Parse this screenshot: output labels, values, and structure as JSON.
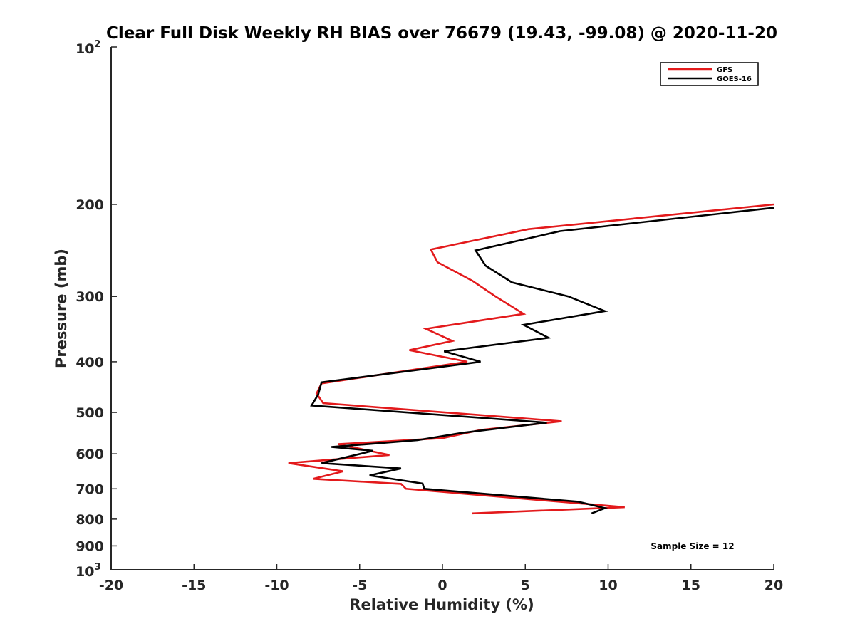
{
  "chart_data": {
    "type": "line",
    "title": "Clear Full Disk Weekly RH BIAS over 76679 (19.43, -99.08) @ 2020-11-20",
    "xlabel": "Relative Humidity (%)",
    "ylabel": "Pressure (mb)",
    "xlim": [
      -20,
      20
    ],
    "ylim": [
      100,
      1000
    ],
    "y_scale": "log",
    "y_reversed": true,
    "grid": false,
    "legend_position": "top-right",
    "x_ticks": [
      -20,
      -15,
      -10,
      -5,
      0,
      5,
      10,
      15,
      20
    ],
    "x_tick_labels": [
      "-20",
      "-15",
      "-10",
      "-5",
      "0",
      "5",
      "10",
      "15",
      "20"
    ],
    "y_ticks": [
      {
        "value": 100,
        "base": "10",
        "exp": "2"
      },
      {
        "value": 200,
        "label": "200"
      },
      {
        "value": 300,
        "label": "300"
      },
      {
        "value": 400,
        "label": "400"
      },
      {
        "value": 500,
        "label": "500"
      },
      {
        "value": 600,
        "label": "600"
      },
      {
        "value": 700,
        "label": "700"
      },
      {
        "value": 800,
        "label": "800"
      },
      {
        "value": 900,
        "label": "900"
      },
      {
        "value": 1000,
        "base": "10",
        "exp": "3"
      }
    ],
    "annotation": "Sample Size = 12",
    "series": [
      {
        "name": "GFS",
        "color": "#e31a1c",
        "points": [
          [
            20.0,
            200
          ],
          [
            5.2,
            223
          ],
          [
            -0.7,
            244
          ],
          [
            -0.3,
            258
          ],
          [
            1.8,
            280
          ],
          [
            3.2,
            300
          ],
          [
            4.9,
            324
          ],
          [
            -1.0,
            346
          ],
          [
            0.6,
            365
          ],
          [
            -2.0,
            380
          ],
          [
            1.5,
            400
          ],
          [
            -7.3,
            440
          ],
          [
            -7.6,
            460
          ],
          [
            -7.2,
            480
          ],
          [
            7.2,
            520
          ],
          [
            2.3,
            540
          ],
          [
            0.0,
            560
          ],
          [
            -6.3,
            575
          ],
          [
            -3.2,
            603
          ],
          [
            -9.3,
            625
          ],
          [
            -6.0,
            648
          ],
          [
            -7.8,
            670
          ],
          [
            -2.5,
            685
          ],
          [
            -2.2,
            700
          ],
          [
            11.0,
            759
          ],
          [
            1.8,
            780
          ]
        ]
      },
      {
        "name": "GOES-16",
        "color": "#000000",
        "points": [
          [
            20.0,
            203
          ],
          [
            7.1,
            225
          ],
          [
            2.0,
            245
          ],
          [
            2.6,
            262
          ],
          [
            4.2,
            282
          ],
          [
            7.6,
            300
          ],
          [
            9.8,
            320
          ],
          [
            4.9,
            340
          ],
          [
            6.4,
            360
          ],
          [
            0.1,
            382
          ],
          [
            2.3,
            400
          ],
          [
            -7.3,
            438
          ],
          [
            -7.5,
            462
          ],
          [
            -7.9,
            485
          ],
          [
            6.3,
            523
          ],
          [
            1.2,
            547
          ],
          [
            -1.5,
            565
          ],
          [
            -6.7,
            582
          ],
          [
            -4.2,
            592
          ],
          [
            -7.3,
            625
          ],
          [
            -2.5,
            640
          ],
          [
            -4.4,
            660
          ],
          [
            -1.2,
            684
          ],
          [
            -1.1,
            700
          ],
          [
            8.2,
            741
          ],
          [
            9.8,
            762
          ],
          [
            9.0,
            780
          ]
        ]
      }
    ]
  }
}
